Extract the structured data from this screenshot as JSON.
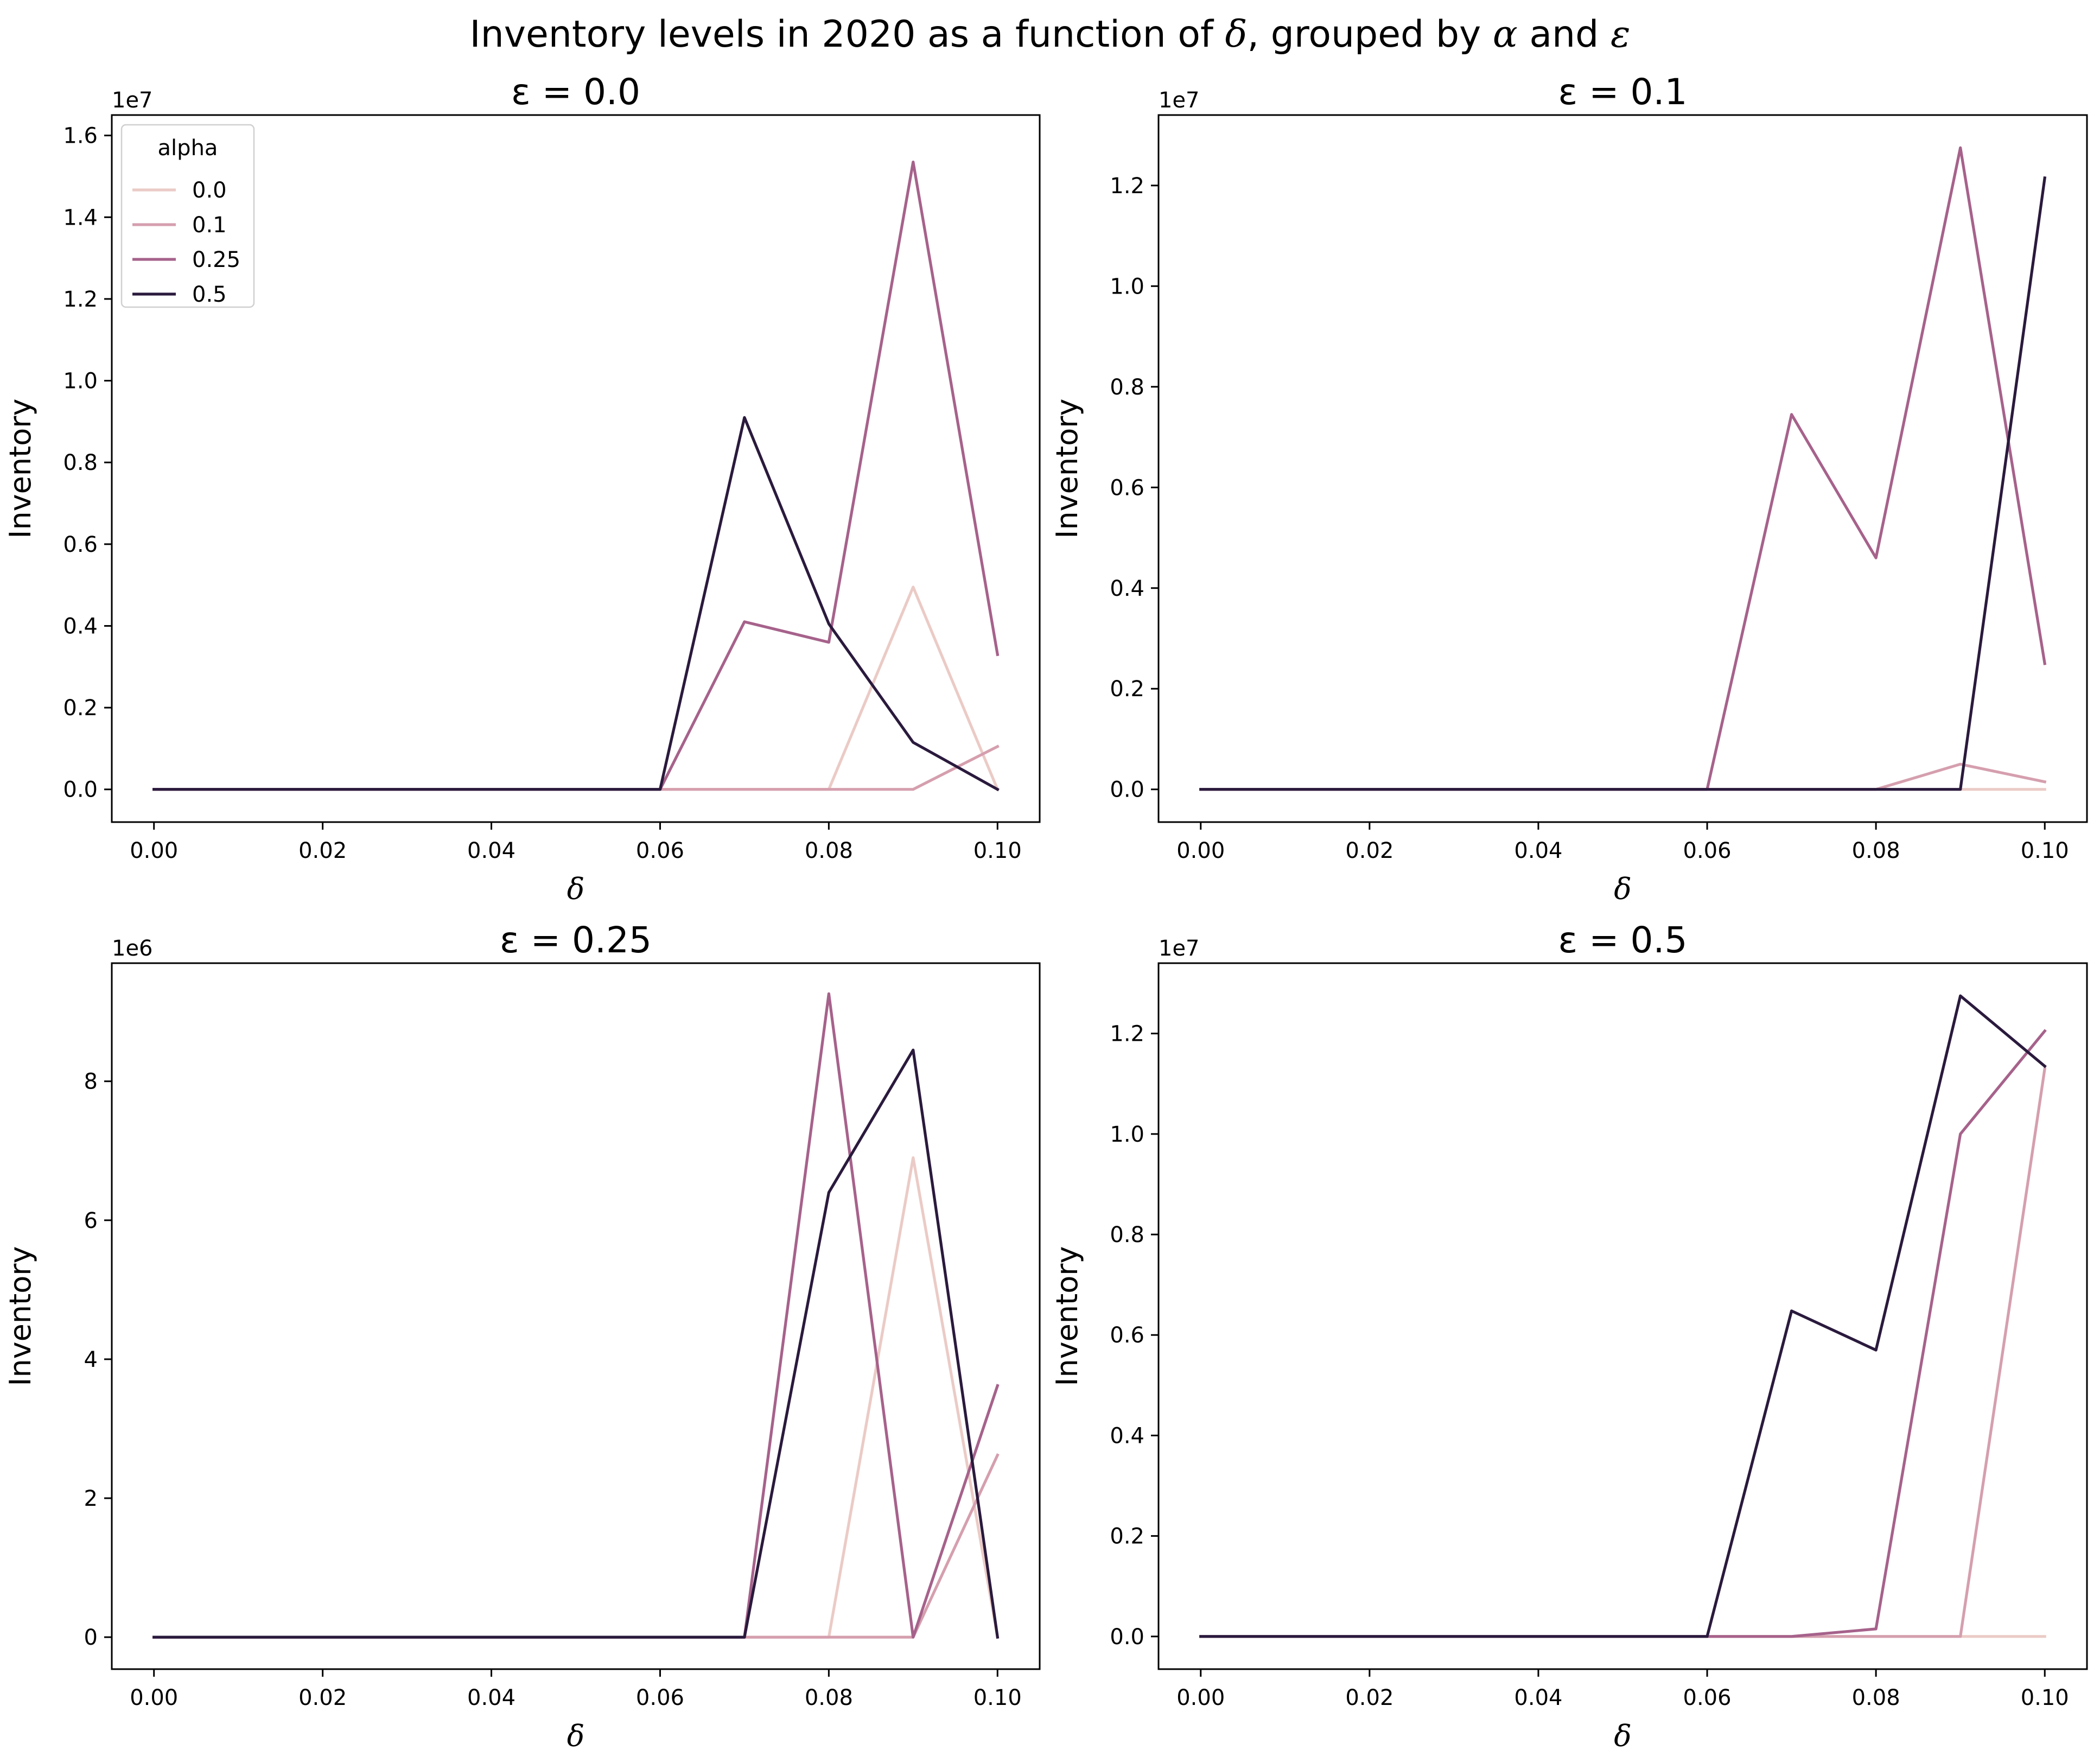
{
  "figure_title": {
    "pre": "Inventory levels in 2020 as a function of ",
    "delta": "δ",
    "mid": ", grouped by ",
    "alpha": "α",
    "and": " and ",
    "eps": "ε"
  },
  "legend": {
    "title": "alpha",
    "entries": [
      "0.0",
      "0.1",
      "0.25",
      "0.5"
    ]
  },
  "colors": {
    "alpha_0.0": "#ebcbc6",
    "alpha_0.1": "#d59fae",
    "alpha_0.25": "#a6628b",
    "alpha_0.5": "#2a1a3d"
  },
  "chart_data": [
    {
      "type": "line",
      "title": "ε = 0.0",
      "xlabel": "δ",
      "ylabel": "Inventory",
      "offset_label": "1e7",
      "x": [
        0.0,
        0.01,
        0.02,
        0.03,
        0.04,
        0.05,
        0.06,
        0.07,
        0.08,
        0.09,
        0.1
      ],
      "xlim": [
        -0.005,
        0.105
      ],
      "ylim": [
        -800000,
        16500000
      ],
      "xticks": [
        0.0,
        0.02,
        0.04,
        0.06,
        0.08,
        0.1
      ],
      "xtick_labels": [
        "0.00",
        "0.02",
        "0.04",
        "0.06",
        "0.08",
        "0.10"
      ],
      "yticks": [
        0,
        2000000,
        4000000,
        6000000,
        8000000,
        10000000,
        12000000,
        14000000,
        16000000
      ],
      "ytick_labels": [
        "0.0",
        "0.2",
        "0.4",
        "0.6",
        "0.8",
        "1.0",
        "1.2",
        "1.4",
        "1.6"
      ],
      "legend": "top-left",
      "grid": false,
      "series": [
        {
          "name": "0.0",
          "values": [
            0,
            0,
            0,
            0,
            0,
            0,
            0,
            0,
            0,
            4950000,
            0
          ]
        },
        {
          "name": "0.1",
          "values": [
            0,
            0,
            0,
            0,
            0,
            0,
            0,
            0,
            0,
            0,
            1050000
          ]
        },
        {
          "name": "0.25",
          "values": [
            0,
            0,
            0,
            0,
            0,
            0,
            0,
            4100000,
            3600000,
            15350000,
            3300000
          ]
        },
        {
          "name": "0.5",
          "values": [
            0,
            0,
            0,
            0,
            0,
            0,
            0,
            9100000,
            4050000,
            1150000,
            0
          ]
        }
      ]
    },
    {
      "type": "line",
      "title": "ε = 0.1",
      "xlabel": "δ",
      "ylabel": "Inventory",
      "offset_label": "1e7",
      "x": [
        0.0,
        0.01,
        0.02,
        0.03,
        0.04,
        0.05,
        0.06,
        0.07,
        0.08,
        0.09,
        0.1
      ],
      "xlim": [
        -0.005,
        0.105
      ],
      "ylim": [
        -650000,
        13400000
      ],
      "xticks": [
        0.0,
        0.02,
        0.04,
        0.06,
        0.08,
        0.1
      ],
      "xtick_labels": [
        "0.00",
        "0.02",
        "0.04",
        "0.06",
        "0.08",
        "0.10"
      ],
      "yticks": [
        0,
        2000000,
        4000000,
        6000000,
        8000000,
        10000000,
        12000000
      ],
      "ytick_labels": [
        "0.0",
        "0.2",
        "0.4",
        "0.6",
        "0.8",
        "1.0",
        "1.2"
      ],
      "grid": false,
      "series": [
        {
          "name": "0.0",
          "values": [
            0,
            0,
            0,
            0,
            0,
            0,
            0,
            0,
            0,
            0,
            0
          ]
        },
        {
          "name": "0.1",
          "values": [
            0,
            0,
            0,
            0,
            0,
            0,
            0,
            0,
            0,
            500000,
            150000
          ]
        },
        {
          "name": "0.25",
          "values": [
            0,
            0,
            0,
            0,
            0,
            0,
            0,
            7450000,
            4600000,
            12750000,
            2500000
          ]
        },
        {
          "name": "0.5",
          "values": [
            0,
            0,
            0,
            0,
            0,
            0,
            0,
            0,
            0,
            0,
            12150000
          ]
        }
      ]
    },
    {
      "type": "line",
      "title": "ε = 0.25",
      "xlabel": "δ",
      "ylabel": "Inventory",
      "offset_label": "1e6",
      "x": [
        0.0,
        0.01,
        0.02,
        0.03,
        0.04,
        0.05,
        0.06,
        0.07,
        0.08,
        0.09,
        0.1
      ],
      "xlim": [
        -0.005,
        0.105
      ],
      "ylim": [
        -460000,
        9700000
      ],
      "xticks": [
        0.0,
        0.02,
        0.04,
        0.06,
        0.08,
        0.1
      ],
      "xtick_labels": [
        "0.00",
        "0.02",
        "0.04",
        "0.06",
        "0.08",
        "0.10"
      ],
      "yticks": [
        0,
        2000000,
        4000000,
        6000000,
        8000000
      ],
      "ytick_labels": [
        "0",
        "2",
        "4",
        "6",
        "8"
      ],
      "grid": false,
      "series": [
        {
          "name": "0.0",
          "values": [
            0,
            0,
            0,
            0,
            0,
            0,
            0,
            0,
            0,
            6900000,
            0
          ]
        },
        {
          "name": "0.1",
          "values": [
            0,
            0,
            0,
            0,
            0,
            0,
            0,
            0,
            0,
            0,
            2620000
          ]
        },
        {
          "name": "0.25",
          "values": [
            0,
            0,
            0,
            0,
            0,
            0,
            0,
            0,
            9260000,
            0,
            3620000
          ]
        },
        {
          "name": "0.5",
          "values": [
            0,
            0,
            0,
            0,
            0,
            0,
            0,
            0,
            6400000,
            8450000,
            0
          ]
        }
      ]
    },
    {
      "type": "line",
      "title": "ε = 0.5",
      "xlabel": "δ",
      "ylabel": "Inventory",
      "offset_label": "1e7",
      "x": [
        0.0,
        0.01,
        0.02,
        0.03,
        0.04,
        0.05,
        0.06,
        0.07,
        0.08,
        0.09,
        0.1
      ],
      "xlim": [
        -0.005,
        0.105
      ],
      "ylim": [
        -650000,
        13400000
      ],
      "xticks": [
        0.0,
        0.02,
        0.04,
        0.06,
        0.08,
        0.1
      ],
      "xtick_labels": [
        "0.00",
        "0.02",
        "0.04",
        "0.06",
        "0.08",
        "0.10"
      ],
      "yticks": [
        0,
        2000000,
        4000000,
        6000000,
        8000000,
        10000000,
        12000000
      ],
      "ytick_labels": [
        "0.0",
        "0.2",
        "0.4",
        "0.6",
        "0.8",
        "1.0",
        "1.2"
      ],
      "grid": false,
      "series": [
        {
          "name": "0.0",
          "values": [
            0,
            0,
            0,
            0,
            0,
            0,
            0,
            0,
            0,
            0,
            0
          ]
        },
        {
          "name": "0.1",
          "values": [
            0,
            0,
            0,
            0,
            0,
            0,
            0,
            0,
            0,
            0,
            11300000
          ]
        },
        {
          "name": "0.25",
          "values": [
            0,
            0,
            0,
            0,
            0,
            0,
            0,
            0,
            150000,
            10000000,
            12050000
          ]
        },
        {
          "name": "0.5",
          "values": [
            0,
            0,
            0,
            0,
            0,
            0,
            0,
            6480000,
            5700000,
            12750000,
            11350000
          ]
        }
      ]
    }
  ]
}
